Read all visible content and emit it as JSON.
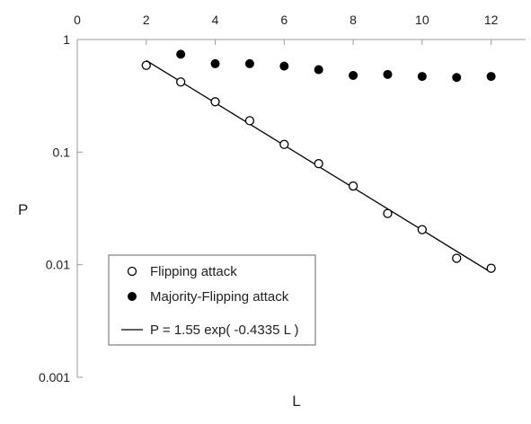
{
  "chart_data": {
    "type": "scatter",
    "xlabel": "L",
    "ylabel": "P",
    "x_scale": "linear",
    "y_scale": "log",
    "xlim": [
      0,
      13
    ],
    "ylim": [
      0.001,
      1
    ],
    "x_ticks": [
      0,
      2,
      4,
      6,
      8,
      10,
      12
    ],
    "x_tick_labels": [
      "0",
      "2",
      "4",
      "6",
      "8",
      "10",
      "12"
    ],
    "x_ticks_position": "top",
    "y_ticks": [
      0.001,
      0.01,
      0.1,
      1
    ],
    "y_tick_labels": [
      "0.001",
      "0.01",
      "0.1",
      "1"
    ],
    "grid": false,
    "legend_position": "bottom-left",
    "series": [
      {
        "name": "Flipping attack",
        "marker": "open-circle",
        "color": "#000000",
        "x": [
          2,
          3,
          4,
          5,
          6,
          7,
          8,
          9,
          10,
          11,
          12
        ],
        "y": [
          0.59,
          0.42,
          0.28,
          0.19,
          0.117,
          0.079,
          0.05,
          0.0285,
          0.0205,
          0.0114,
          0.0093
        ]
      },
      {
        "name": "Majority-Flipping attack",
        "marker": "filled-circle",
        "color": "#000000",
        "x": [
          3,
          4,
          5,
          6,
          7,
          8,
          9,
          10,
          11,
          12
        ],
        "y": [
          0.74,
          0.61,
          0.61,
          0.58,
          0.54,
          0.48,
          0.49,
          0.47,
          0.46,
          0.47
        ]
      },
      {
        "name": "P = 1.55 exp( -0.4335 L )",
        "marker": "line",
        "color": "#000000",
        "fit": {
          "a": 1.55,
          "b": -0.4335,
          "x_range": [
            2,
            12
          ]
        }
      }
    ]
  }
}
